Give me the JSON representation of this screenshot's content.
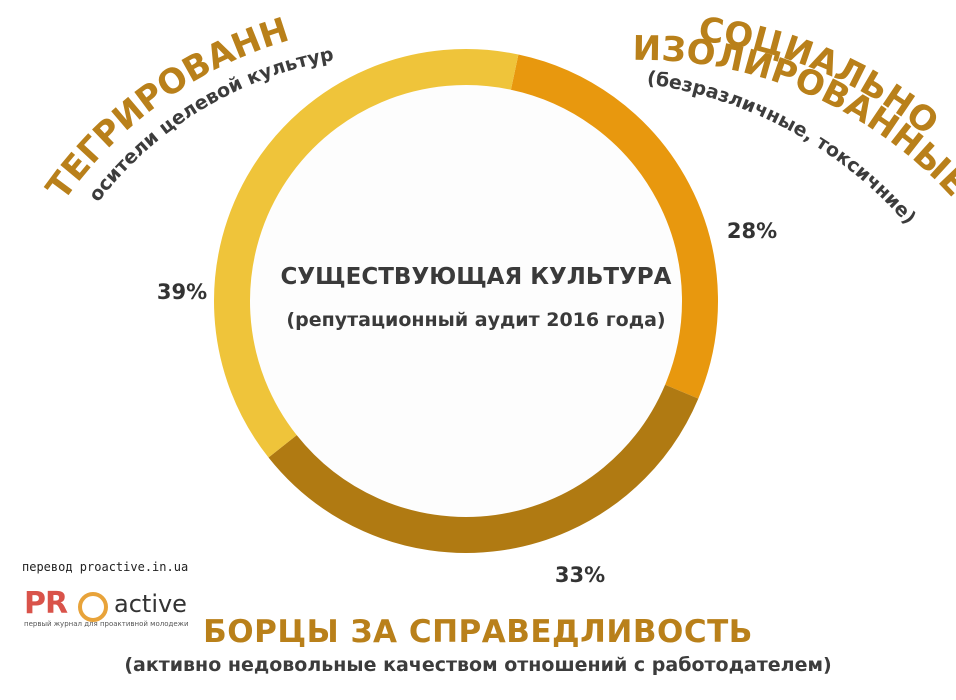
{
  "chart_data": {
    "type": "pie",
    "style": "donut",
    "center_title": "СУЩЕСТВУЮЩАЯ КУЛЬТУРА",
    "center_subtitle": "(репутационный аудит 2016 года)",
    "slices": [
      {
        "title": "СОЦИАЛЬНО ИЗОЛИРОВАННЫЕ",
        "title_lines": [
          "СОЦИАЛЬНО",
          "ИЗОЛИРОВАННЫЕ"
        ],
        "subtitle": "(безразличные, токсичние)",
        "value": 28,
        "label": "28%",
        "color": "#e8980e"
      },
      {
        "title": "БОРЦЫ ЗА СПРАВЕДЛИВОСТЬ",
        "subtitle": "(активно недовольные качеством отношений с работодателем)",
        "value": 33,
        "label": "33%",
        "color": "#b07a12"
      },
      {
        "title": "ИНТЕГРИРОВАННЫЕ",
        "subtitle": "(носители целевой культуры)",
        "value": 39,
        "label": "39%",
        "color": "#efc43a"
      }
    ]
  },
  "credit": "перевод proactive.in.ua",
  "logo": {
    "pr": "PR",
    "active": "active",
    "tagline": "первый журнал для проактивной молодежи"
  }
}
